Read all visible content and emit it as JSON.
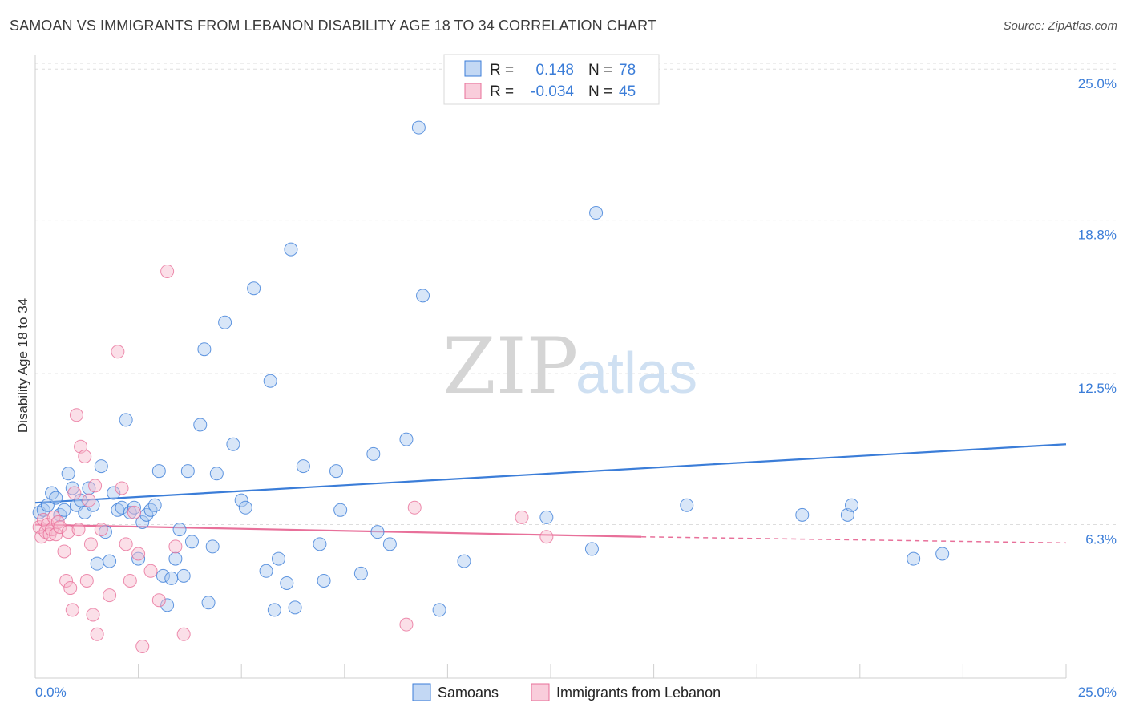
{
  "title": "SAMOAN VS IMMIGRANTS FROM LEBANON DISABILITY AGE 18 TO 34 CORRELATION CHART",
  "source": "Source: ZipAtlas.com",
  "watermark": {
    "zip": "ZIP",
    "atlas": "atlas"
  },
  "colors": {
    "blue": "#3b7dd8",
    "blue_fill": "#a9c8f0",
    "pink": "#e8709a",
    "pink_fill": "#f6b8cc",
    "grid": "#dddddd"
  },
  "legend": {
    "rows": [
      {
        "r_label": "R =",
        "r_value": "0.148",
        "n_label": "N =",
        "n_value": "78"
      },
      {
        "r_label": "R =",
        "r_value": "-0.034",
        "n_label": "N =",
        "n_value": "45"
      }
    ]
  },
  "chart_data": {
    "type": "scatter",
    "ylabel": "Disability Age 18 to 34",
    "xlim": [
      0,
      25
    ],
    "ylim": [
      0,
      25.6
    ],
    "x_tick_labels": [
      "0.0%",
      "25.0%"
    ],
    "y_ticks": [
      6.3,
      12.5,
      18.8,
      25.0
    ],
    "y_tick_labels": [
      "6.3%",
      "12.5%",
      "18.8%",
      "25.0%"
    ],
    "series": [
      {
        "name": "Samoans",
        "color": "blue",
        "trend": {
          "x0": 0,
          "y0": 7.2,
          "x1": 25,
          "y1": 9.6
        },
        "points": [
          [
            0.1,
            6.8
          ],
          [
            0.2,
            6.9
          ],
          [
            0.3,
            7.1
          ],
          [
            0.4,
            7.6
          ],
          [
            0.5,
            7.4
          ],
          [
            0.6,
            6.7
          ],
          [
            0.7,
            6.9
          ],
          [
            0.8,
            8.4
          ],
          [
            0.9,
            7.8
          ],
          [
            1.0,
            7.1
          ],
          [
            1.1,
            7.3
          ],
          [
            1.2,
            6.8
          ],
          [
            1.3,
            7.8
          ],
          [
            1.4,
            7.1
          ],
          [
            1.5,
            4.7
          ],
          [
            1.6,
            8.7
          ],
          [
            1.7,
            6.0
          ],
          [
            1.8,
            4.8
          ],
          [
            1.9,
            7.6
          ],
          [
            2.0,
            6.9
          ],
          [
            2.1,
            7.0
          ],
          [
            2.2,
            10.6
          ],
          [
            2.3,
            6.8
          ],
          [
            2.4,
            7.0
          ],
          [
            2.5,
            4.9
          ],
          [
            2.6,
            6.4
          ],
          [
            2.7,
            6.7
          ],
          [
            2.8,
            6.9
          ],
          [
            2.9,
            7.1
          ],
          [
            3.0,
            8.5
          ],
          [
            3.1,
            4.2
          ],
          [
            3.2,
            3.0
          ],
          [
            3.3,
            4.1
          ],
          [
            3.4,
            4.9
          ],
          [
            3.5,
            6.1
          ],
          [
            3.6,
            4.2
          ],
          [
            3.7,
            8.5
          ],
          [
            3.8,
            5.6
          ],
          [
            4.0,
            10.4
          ],
          [
            4.1,
            13.5
          ],
          [
            4.2,
            3.1
          ],
          [
            4.3,
            5.4
          ],
          [
            4.4,
            8.4
          ],
          [
            4.6,
            14.6
          ],
          [
            4.8,
            9.6
          ],
          [
            5.0,
            7.3
          ],
          [
            5.1,
            7.0
          ],
          [
            5.3,
            16.0
          ],
          [
            5.6,
            4.4
          ],
          [
            5.7,
            12.2
          ],
          [
            5.8,
            2.8
          ],
          [
            5.9,
            4.9
          ],
          [
            6.1,
            3.9
          ],
          [
            6.2,
            17.6
          ],
          [
            6.3,
            2.9
          ],
          [
            6.5,
            8.7
          ],
          [
            6.9,
            5.5
          ],
          [
            7.0,
            4.0
          ],
          [
            7.3,
            8.5
          ],
          [
            7.4,
            6.9
          ],
          [
            7.9,
            4.3
          ],
          [
            8.2,
            9.2
          ],
          [
            8.3,
            6.0
          ],
          [
            8.6,
            5.5
          ],
          [
            9.0,
            9.8
          ],
          [
            9.3,
            22.6
          ],
          [
            9.4,
            15.7
          ],
          [
            9.8,
            2.8
          ],
          [
            10.4,
            4.8
          ],
          [
            12.4,
            6.6
          ],
          [
            13.5,
            5.3
          ],
          [
            13.6,
            19.1
          ],
          [
            15.8,
            7.1
          ],
          [
            18.6,
            6.7
          ],
          [
            19.7,
            6.7
          ],
          [
            19.8,
            7.1
          ],
          [
            21.3,
            4.9
          ],
          [
            22.0,
            5.1
          ]
        ]
      },
      {
        "name": "Immigrants from Lebanon",
        "color": "pink",
        "trend": {
          "x0": 0,
          "y0": 6.3,
          "x1": 14.7,
          "y1": 5.8,
          "dash_to_x": 25,
          "dash_to_y": 5.55
        },
        "points": [
          [
            0.1,
            6.2
          ],
          [
            0.15,
            5.8
          ],
          [
            0.2,
            6.5
          ],
          [
            0.25,
            6.0
          ],
          [
            0.3,
            6.3
          ],
          [
            0.35,
            5.9
          ],
          [
            0.4,
            6.1
          ],
          [
            0.45,
            6.6
          ],
          [
            0.5,
            5.9
          ],
          [
            0.55,
            6.4
          ],
          [
            0.6,
            6.2
          ],
          [
            0.7,
            5.2
          ],
          [
            0.75,
            4.0
          ],
          [
            0.8,
            6.0
          ],
          [
            0.85,
            3.7
          ],
          [
            0.9,
            2.8
          ],
          [
            0.95,
            7.6
          ],
          [
            1.0,
            10.8
          ],
          [
            1.05,
            6.1
          ],
          [
            1.1,
            9.5
          ],
          [
            1.2,
            9.1
          ],
          [
            1.25,
            4.0
          ],
          [
            1.3,
            7.3
          ],
          [
            1.35,
            5.5
          ],
          [
            1.4,
            2.6
          ],
          [
            1.45,
            7.9
          ],
          [
            1.5,
            1.8
          ],
          [
            1.6,
            6.1
          ],
          [
            1.8,
            3.4
          ],
          [
            2.0,
            13.4
          ],
          [
            2.1,
            7.8
          ],
          [
            2.2,
            5.5
          ],
          [
            2.3,
            4.0
          ],
          [
            2.4,
            6.8
          ],
          [
            2.5,
            5.1
          ],
          [
            2.6,
            1.3
          ],
          [
            2.8,
            4.4
          ],
          [
            3.0,
            3.2
          ],
          [
            3.2,
            16.7
          ],
          [
            3.4,
            5.4
          ],
          [
            3.6,
            1.8
          ],
          [
            9.0,
            2.2
          ],
          [
            9.2,
            7.0
          ],
          [
            11.8,
            6.6
          ],
          [
            12.4,
            5.8
          ]
        ]
      }
    ]
  },
  "bottom_legend": [
    {
      "label": "Samoans",
      "color": "blue"
    },
    {
      "label": "Immigrants from Lebanon",
      "color": "pink"
    }
  ]
}
